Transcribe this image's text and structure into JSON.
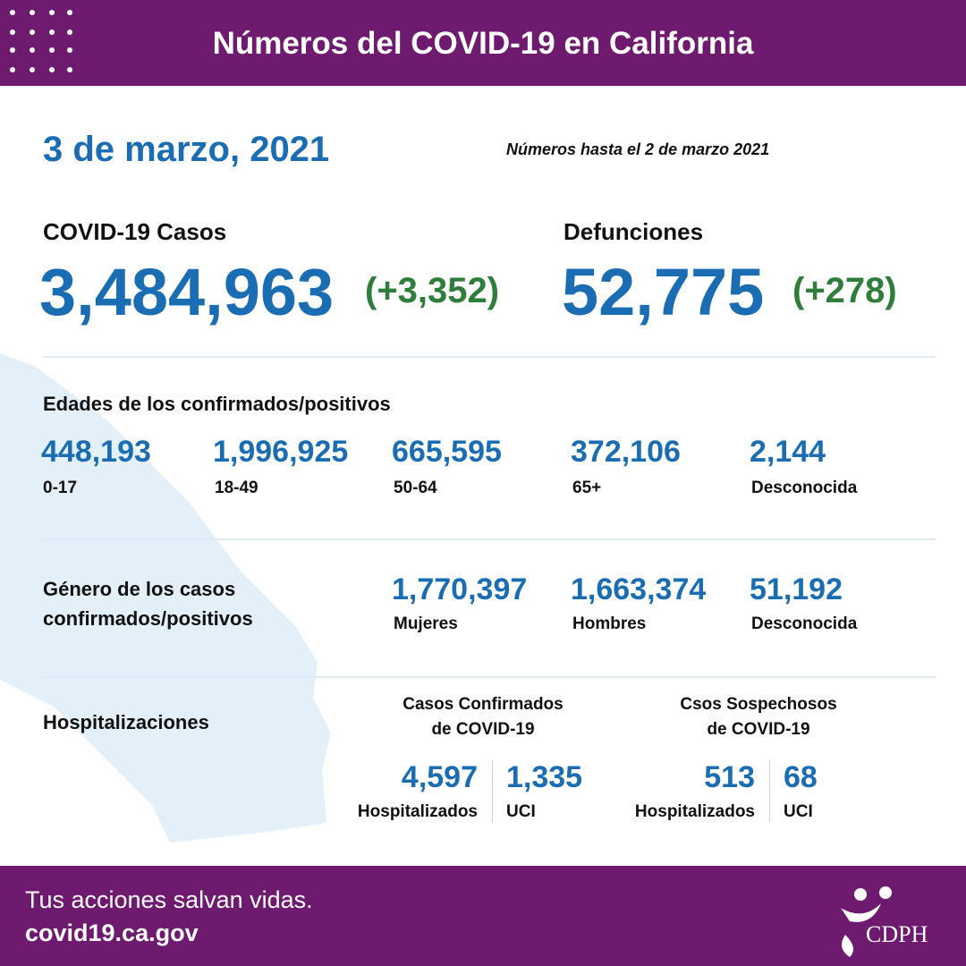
{
  "header": {
    "title": "Números del COVID-19 en California"
  },
  "date": "3 de marzo, 2021",
  "as_of": "Números hasta el 2 de marzo 2021",
  "cases": {
    "label": "COVID-19 Casos",
    "value": "3,484,963",
    "change": "(+3,352)"
  },
  "deaths": {
    "label": "Defunciones",
    "value": "52,775",
    "change": "(+278)"
  },
  "ages": {
    "title": "Edades de los confirmados/positivos",
    "groups": [
      {
        "value": "448,193",
        "label": "0-17"
      },
      {
        "value": "1,996,925",
        "label": "18-49"
      },
      {
        "value": "665,595",
        "label": "50-64"
      },
      {
        "value": "372,106",
        "label": "65+"
      },
      {
        "value": "2,144",
        "label": "Desconocida"
      }
    ]
  },
  "gender": {
    "title": [
      "Género de los casos",
      "confirmados/positivos"
    ],
    "groups": [
      {
        "value": "1,770,397",
        "label": "Mujeres"
      },
      {
        "value": "1,663,374",
        "label": "Hombres"
      },
      {
        "value": "51,192",
        "label": "Desconocida"
      }
    ]
  },
  "hospitalizations": {
    "title": "Hospitalizaciones",
    "confirmed": {
      "title": [
        "Casos Confirmados",
        "de COVID-19"
      ],
      "items": [
        {
          "value": "4,597",
          "label": "Hospitalizados"
        },
        {
          "value": "1,335",
          "label": "UCI"
        }
      ]
    },
    "suspected": {
      "title": [
        "Csos Sospechosos",
        "de COVID-19"
      ],
      "items": [
        {
          "value": "513",
          "label": "Hospitalizados"
        },
        {
          "value": "68",
          "label": "UCI"
        }
      ]
    }
  },
  "footer": {
    "tagline": "Tus acciones salvan vidas.",
    "url": "covid19.ca.gov",
    "logo": "CDPH"
  }
}
